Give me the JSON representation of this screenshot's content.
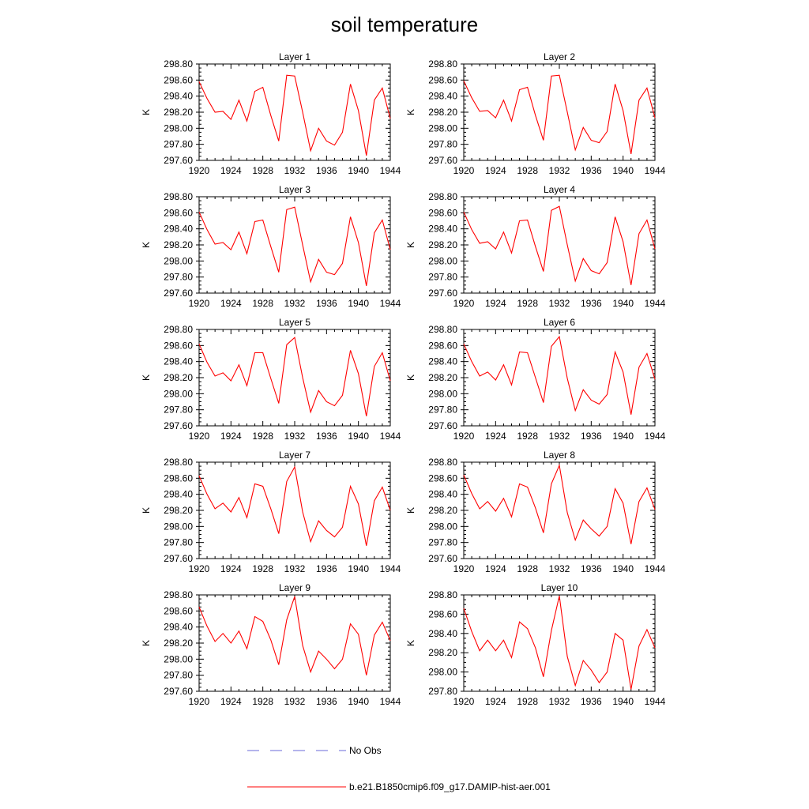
{
  "title": "soil temperature",
  "chart_data": {
    "type": "line",
    "title": "soil temperature",
    "x": [
      1920,
      1921,
      1922,
      1923,
      1924,
      1925,
      1926,
      1927,
      1928,
      1929,
      1930,
      1931,
      1932,
      1933,
      1934,
      1935,
      1936,
      1937,
      1938,
      1939,
      1940,
      1941,
      1942,
      1943,
      1944
    ],
    "x_ticks": [
      1920,
      1924,
      1928,
      1932,
      1936,
      1940,
      1944
    ],
    "xlim": [
      1920,
      1944
    ],
    "ylabel": "K",
    "grid": false,
    "legend_position": "bottom",
    "legend": [
      {
        "label": "No Obs",
        "color": "#6a6ad8",
        "style": "dashed"
      },
      {
        "label": "b.e21.B1850cmip6.f09_g17.DAMIP-hist-aer.001",
        "color": "#ff0000",
        "style": "solid"
      }
    ],
    "panels": [
      {
        "title": "Layer 1",
        "ylim": [
          297.6,
          298.8
        ],
        "y_ticks": [
          "298.80",
          "298.60",
          "298.40",
          "298.20",
          "298.00",
          "297.80",
          "297.60"
        ],
        "series": [
          {
            "name": "b.e21.B1850cmip6.f09_g17.DAMIP-hist-aer.001",
            "color": "#ff0000",
            "values": [
              298.58,
              298.37,
              298.2,
              298.21,
              298.11,
              298.35,
              298.09,
              298.46,
              298.51,
              298.16,
              297.84,
              298.66,
              298.65,
              298.2,
              297.72,
              298.0,
              297.84,
              297.79,
              297.95,
              298.55,
              298.22,
              297.66,
              298.35,
              298.5,
              298.12
            ]
          }
        ]
      },
      {
        "title": "Layer 2",
        "ylim": [
          297.6,
          298.8
        ],
        "y_ticks": [
          "298.80",
          "298.60",
          "298.40",
          "298.20",
          "298.00",
          "297.80",
          "297.60"
        ],
        "series": [
          {
            "name": "b.e21.B1850cmip6.f09_g17.DAMIP-hist-aer.001",
            "color": "#ff0000",
            "values": [
              298.59,
              298.38,
              298.21,
              298.22,
              298.13,
              298.35,
              298.09,
              298.48,
              298.51,
              298.16,
              297.85,
              298.65,
              298.66,
              298.2,
              297.73,
              298.01,
              297.85,
              297.82,
              297.96,
              298.55,
              298.22,
              297.68,
              298.35,
              298.5,
              298.13
            ]
          }
        ]
      },
      {
        "title": "Layer 3",
        "ylim": [
          297.6,
          298.8
        ],
        "y_ticks": [
          "298.80",
          "298.60",
          "298.40",
          "298.20",
          "298.00",
          "297.80",
          "297.60"
        ],
        "series": [
          {
            "name": "b.e21.B1850cmip6.f09_g17.DAMIP-hist-aer.001",
            "color": "#ff0000",
            "values": [
              298.61,
              298.39,
              298.21,
              298.23,
              298.14,
              298.36,
              298.09,
              298.49,
              298.51,
              298.18,
              297.86,
              298.64,
              298.67,
              298.2,
              297.74,
              298.02,
              297.86,
              297.83,
              297.97,
              298.55,
              298.23,
              297.69,
              298.35,
              298.51,
              298.14
            ]
          }
        ]
      },
      {
        "title": "Layer 4",
        "ylim": [
          297.6,
          298.8
        ],
        "y_ticks": [
          "298.80",
          "298.60",
          "298.40",
          "298.20",
          "298.00",
          "297.80",
          "297.60"
        ],
        "series": [
          {
            "name": "b.e21.B1850cmip6.f09_g17.DAMIP-hist-aer.001",
            "color": "#ff0000",
            "values": [
              298.61,
              298.39,
              298.22,
              298.24,
              298.15,
              298.36,
              298.1,
              298.5,
              298.51,
              298.18,
              297.87,
              298.63,
              298.68,
              298.2,
              297.75,
              298.03,
              297.88,
              297.84,
              297.98,
              298.55,
              298.24,
              297.7,
              298.34,
              298.51,
              298.15
            ]
          }
        ]
      },
      {
        "title": "Layer 5",
        "ylim": [
          297.6,
          298.8
        ],
        "y_ticks": [
          "298.80",
          "298.60",
          "298.40",
          "298.20",
          "298.00",
          "297.80",
          "297.60"
        ],
        "series": [
          {
            "name": "b.e21.B1850cmip6.f09_g17.DAMIP-hist-aer.001",
            "color": "#ff0000",
            "values": [
              298.62,
              298.39,
              298.22,
              298.26,
              298.16,
              298.36,
              298.1,
              298.51,
              298.51,
              298.19,
              297.88,
              298.61,
              298.7,
              298.2,
              297.77,
              298.04,
              297.9,
              297.85,
              297.98,
              298.54,
              298.25,
              297.72,
              298.34,
              298.51,
              298.16
            ]
          }
        ]
      },
      {
        "title": "Layer 6",
        "ylim": [
          297.6,
          298.8
        ],
        "y_ticks": [
          "298.80",
          "298.60",
          "298.40",
          "298.20",
          "298.00",
          "297.80",
          "297.60"
        ],
        "series": [
          {
            "name": "b.e21.B1850cmip6.f09_g17.DAMIP-hist-aer.001",
            "color": "#ff0000",
            "values": [
              298.62,
              298.4,
              298.22,
              298.27,
              298.17,
              298.36,
              298.11,
              298.52,
              298.51,
              298.2,
              297.89,
              298.59,
              298.71,
              298.19,
              297.79,
              298.05,
              297.92,
              297.87,
              297.99,
              298.52,
              298.27,
              297.74,
              298.33,
              298.5,
              298.18
            ]
          }
        ]
      },
      {
        "title": "Layer 7",
        "ylim": [
          297.6,
          298.8
        ],
        "y_ticks": [
          "298.80",
          "298.60",
          "298.40",
          "298.20",
          "298.00",
          "297.80",
          "297.60"
        ],
        "series": [
          {
            "name": "b.e21.B1850cmip6.f09_g17.DAMIP-hist-aer.001",
            "color": "#ff0000",
            "values": [
              298.63,
              298.4,
              298.22,
              298.29,
              298.18,
              298.36,
              298.11,
              298.53,
              298.5,
              298.22,
              297.91,
              298.56,
              298.74,
              298.18,
              297.81,
              298.07,
              297.95,
              297.87,
              297.99,
              298.5,
              298.28,
              297.76,
              298.32,
              298.49,
              298.2
            ]
          }
        ]
      },
      {
        "title": "Layer 8",
        "ylim": [
          297.6,
          298.8
        ],
        "y_ticks": [
          "298.80",
          "298.60",
          "298.40",
          "298.20",
          "298.00",
          "297.80",
          "297.60"
        ],
        "series": [
          {
            "name": "b.e21.B1850cmip6.f09_g17.DAMIP-hist-aer.001",
            "color": "#ff0000",
            "values": [
              298.64,
              298.41,
              298.22,
              298.31,
              298.19,
              298.35,
              298.12,
              298.53,
              298.49,
              298.23,
              297.92,
              298.53,
              298.76,
              298.17,
              297.83,
              298.08,
              297.97,
              297.88,
              298.0,
              298.47,
              298.29,
              297.78,
              298.31,
              298.48,
              298.21
            ]
          }
        ]
      },
      {
        "title": "Layer 9",
        "ylim": [
          297.6,
          298.8
        ],
        "y_ticks": [
          "298.80",
          "298.60",
          "298.40",
          "298.20",
          "298.00",
          "297.80",
          "297.60"
        ],
        "series": [
          {
            "name": "b.e21.B1850cmip6.f09_g17.DAMIP-hist-aer.001",
            "color": "#ff0000",
            "values": [
              298.65,
              298.41,
              298.22,
              298.32,
              298.2,
              298.35,
              298.13,
              298.53,
              298.47,
              298.24,
              297.93,
              298.49,
              298.78,
              298.17,
              297.84,
              298.1,
              298.0,
              297.88,
              298.0,
              298.44,
              298.31,
              297.8,
              298.3,
              298.46,
              298.23
            ]
          }
        ]
      },
      {
        "title": "Layer 10",
        "ylim": [
          297.8,
          298.8
        ],
        "y_ticks": [
          "298.80",
          "298.60",
          "298.40",
          "298.20",
          "298.00",
          "297.80"
        ],
        "series": [
          {
            "name": "b.e21.B1850cmip6.f09_g17.DAMIP-hist-aer.001",
            "color": "#ff0000",
            "values": [
              298.66,
              298.42,
              298.22,
              298.33,
              298.22,
              298.33,
              298.15,
              298.52,
              298.45,
              298.25,
              297.95,
              298.43,
              298.79,
              298.16,
              297.86,
              298.12,
              298.02,
              297.89,
              298.0,
              298.4,
              298.33,
              297.82,
              298.27,
              298.44,
              298.25
            ]
          }
        ]
      }
    ]
  }
}
